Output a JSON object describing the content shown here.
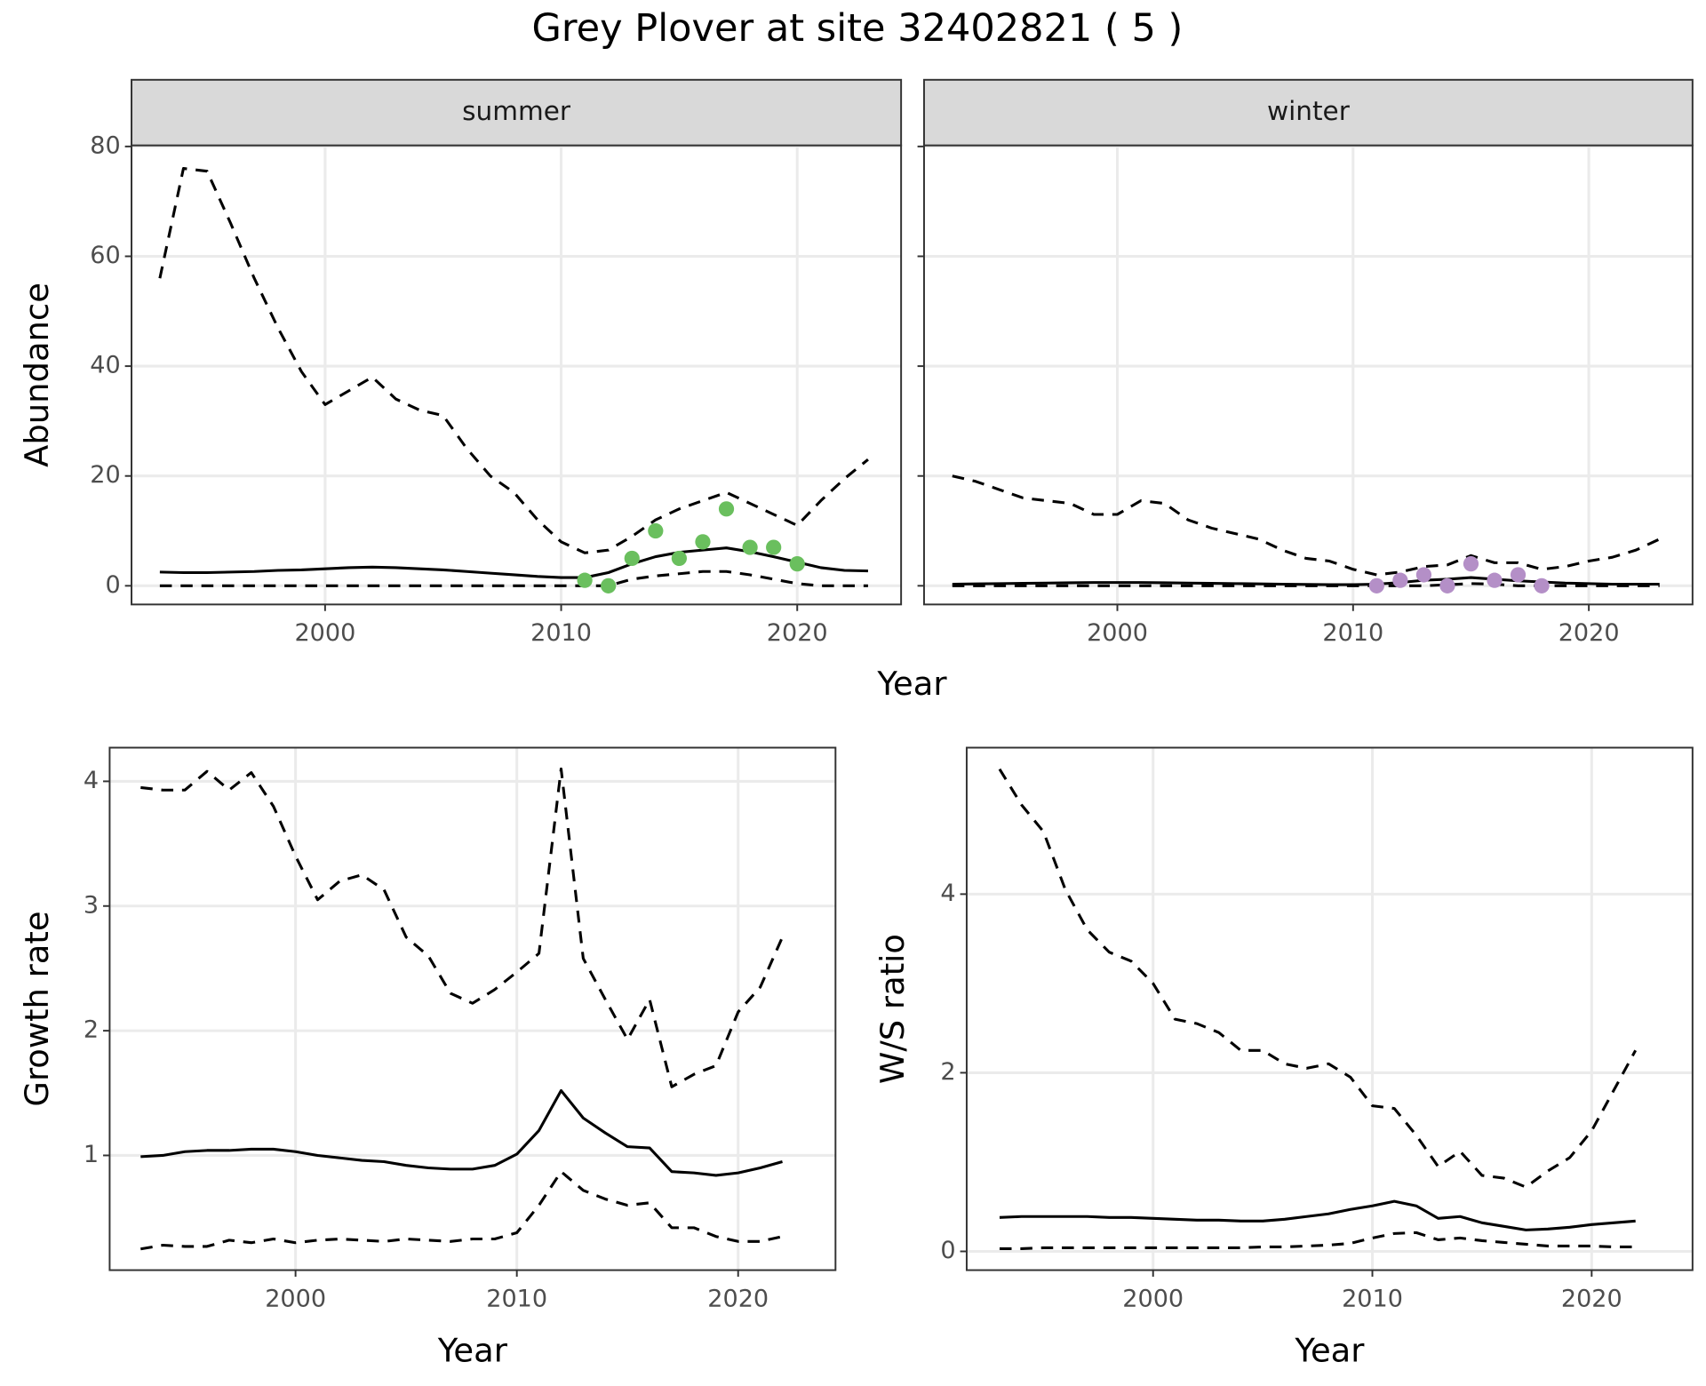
{
  "title": "Grey Plover at site 32402821 ( 5 )",
  "chart_data": [
    {
      "type": "line",
      "xlabel": "Year",
      "ylabel": "Abundance",
      "x": [
        1993,
        1994,
        1995,
        1996,
        1997,
        1998,
        1999,
        2000,
        2001,
        2002,
        2003,
        2004,
        2005,
        2006,
        2007,
        2008,
        2009,
        2010,
        2011,
        2012,
        2013,
        2014,
        2015,
        2016,
        2017,
        2018,
        2019,
        2020,
        2021,
        2022,
        2023
      ],
      "xlim": [
        1991.8,
        2024.4
      ],
      "xticks": [
        2000,
        2010,
        2020
      ],
      "ylim": [
        -3.4,
        80.2
      ],
      "yticks": [
        0,
        20,
        40,
        60,
        80
      ],
      "grid": true,
      "facets": [
        {
          "title": "summer",
          "series": [
            {
              "color": "#000000",
              "dash": false,
              "values": [
                2.5,
                2.4,
                2.4,
                2.5,
                2.6,
                2.8,
                2.9,
                3.1,
                3.3,
                3.4,
                3.3,
                3.1,
                2.9,
                2.6,
                2.3,
                2.0,
                1.7,
                1.5,
                1.5,
                2.4,
                4.0,
                5.3,
                6.1,
                6.5,
                6.9,
                6.2,
                5.3,
                4.3,
                3.3,
                2.8,
                2.7
              ]
            },
            {
              "color": "#000000",
              "dash": true,
              "values": [
                0,
                0,
                0,
                0,
                0,
                0,
                0,
                0,
                0,
                0,
                0,
                0,
                0,
                0,
                0,
                0,
                0,
                0,
                0,
                0,
                1.2,
                1.8,
                2.2,
                2.6,
                2.6,
                2.0,
                1.2,
                0.4,
                0,
                0,
                0
              ]
            },
            {
              "color": "#000000",
              "dash": true,
              "values": [
                56,
                76,
                75.5,
                66,
                56,
                47,
                39,
                33,
                35.5,
                38,
                34,
                32,
                31,
                25,
                20,
                17,
                12,
                8,
                6,
                6.5,
                9,
                12,
                14,
                15.5,
                17,
                15,
                13,
                11,
                15.5,
                19.5,
                23
              ]
            }
          ],
          "points": {
            "color": "#6abf5e",
            "x": [
              2011,
              2012,
              2013,
              2014,
              2015,
              2016,
              2017,
              2018,
              2019,
              2020
            ],
            "values": [
              1,
              0,
              5,
              10,
              5,
              8,
              14,
              7,
              7,
              4
            ]
          }
        },
        {
          "title": "winter",
          "series": [
            {
              "color": "#000000",
              "dash": false,
              "values": [
                0.3,
                0.35,
                0.4,
                0.45,
                0.5,
                0.55,
                0.6,
                0.6,
                0.6,
                0.55,
                0.5,
                0.45,
                0.4,
                0.35,
                0.3,
                0.25,
                0.2,
                0.2,
                0.3,
                0.6,
                1.0,
                1.2,
                1.5,
                1.2,
                0.9,
                0.7,
                0.5,
                0.4,
                0.3,
                0.3,
                0.3
              ]
            },
            {
              "color": "#000000",
              "dash": true,
              "values": [
                0,
                0,
                0,
                0,
                0,
                0,
                0,
                0,
                0,
                0,
                0,
                0,
                0,
                0,
                0,
                0,
                0,
                0,
                0,
                0,
                0,
                0.2,
                0.4,
                0.3,
                0,
                0,
                0,
                0,
                0,
                0,
                0
              ]
            },
            {
              "color": "#000000",
              "dash": true,
              "values": [
                20,
                19,
                17.5,
                16,
                15.5,
                15,
                13,
                13,
                15.5,
                15,
                12,
                10.5,
                9.5,
                8.5,
                6.5,
                5,
                4.5,
                3,
                2,
                2.5,
                3.5,
                3.8,
                5.5,
                4.2,
                4.2,
                3,
                3.5,
                4.5,
                5.2,
                6.5,
                8.5
              ]
            }
          ],
          "points": {
            "color": "#b48fc7",
            "x": [
              2011,
              2012,
              2013,
              2014,
              2015,
              2016,
              2017,
              2018
            ],
            "values": [
              0,
              1,
              2,
              0,
              4,
              1,
              2,
              0
            ]
          }
        }
      ]
    },
    {
      "type": "line",
      "xlabel": "Year",
      "ylabel": "Growth rate",
      "x": [
        1993,
        1994,
        1995,
        1996,
        1997,
        1998,
        1999,
        2000,
        2001,
        2002,
        2003,
        2004,
        2005,
        2006,
        2007,
        2008,
        2009,
        2010,
        2011,
        2012,
        2013,
        2014,
        2015,
        2016,
        2017,
        2018,
        2019,
        2020,
        2021,
        2022
      ],
      "xlim": [
        1991.6,
        2024.4
      ],
      "xticks": [
        2000,
        2010,
        2020
      ],
      "ylim": [
        0.08,
        4.27
      ],
      "yticks": [
        1,
        2,
        3,
        4
      ],
      "grid": true,
      "series": [
        {
          "color": "#000000",
          "dash": false,
          "values": [
            0.99,
            1.0,
            1.03,
            1.04,
            1.04,
            1.05,
            1.05,
            1.03,
            1.0,
            0.98,
            0.96,
            0.95,
            0.92,
            0.9,
            0.89,
            0.89,
            0.92,
            1.01,
            1.2,
            1.52,
            1.3,
            1.18,
            1.07,
            1.06,
            0.87,
            0.86,
            0.84,
            0.86,
            0.9,
            0.95
          ]
        },
        {
          "color": "#000000",
          "dash": true,
          "values": [
            0.25,
            0.28,
            0.27,
            0.27,
            0.32,
            0.3,
            0.33,
            0.3,
            0.32,
            0.33,
            0.32,
            0.31,
            0.33,
            0.32,
            0.31,
            0.33,
            0.33,
            0.38,
            0.6,
            0.87,
            0.72,
            0.65,
            0.6,
            0.62,
            0.42,
            0.42,
            0.35,
            0.31,
            0.31,
            0.35
          ]
        },
        {
          "color": "#000000",
          "dash": true,
          "values": [
            3.95,
            3.93,
            3.93,
            4.08,
            3.93,
            4.07,
            3.8,
            3.4,
            3.05,
            3.2,
            3.25,
            3.13,
            2.75,
            2.6,
            2.3,
            2.22,
            2.33,
            2.47,
            2.62,
            4.1,
            2.58,
            2.25,
            1.93,
            2.25,
            1.55,
            1.65,
            1.72,
            2.15,
            2.35,
            2.75
          ]
        }
      ]
    },
    {
      "type": "line",
      "xlabel": "Year",
      "ylabel": "W/S ratio",
      "x": [
        1993,
        1994,
        1995,
        1996,
        1997,
        1998,
        1999,
        2000,
        2001,
        2002,
        2003,
        2004,
        2005,
        2006,
        2007,
        2008,
        2009,
        2010,
        2011,
        2012,
        2013,
        2014,
        2015,
        2016,
        2017,
        2018,
        2019,
        2020,
        2021,
        2022
      ],
      "xlim": [
        1991.5,
        2024.6
      ],
      "xticks": [
        2000,
        2010,
        2020
      ],
      "ylim": [
        -0.21,
        5.64
      ],
      "yticks": [
        0,
        2,
        4
      ],
      "grid": true,
      "series": [
        {
          "color": "#000000",
          "dash": false,
          "values": [
            0.38,
            0.39,
            0.39,
            0.39,
            0.39,
            0.38,
            0.38,
            0.37,
            0.36,
            0.35,
            0.35,
            0.34,
            0.34,
            0.36,
            0.39,
            0.42,
            0.47,
            0.51,
            0.56,
            0.51,
            0.37,
            0.39,
            0.32,
            0.28,
            0.24,
            0.25,
            0.27,
            0.3,
            0.32,
            0.34
          ]
        },
        {
          "color": "#000000",
          "dash": true,
          "values": [
            0.03,
            0.03,
            0.04,
            0.04,
            0.04,
            0.04,
            0.04,
            0.04,
            0.04,
            0.04,
            0.04,
            0.04,
            0.05,
            0.05,
            0.06,
            0.07,
            0.09,
            0.15,
            0.2,
            0.21,
            0.13,
            0.15,
            0.12,
            0.1,
            0.08,
            0.06,
            0.06,
            0.06,
            0.05,
            0.05
          ]
        },
        {
          "color": "#000000",
          "dash": true,
          "values": [
            5.4,
            5.0,
            4.7,
            4.05,
            3.6,
            3.35,
            3.25,
            3.0,
            2.6,
            2.55,
            2.45,
            2.25,
            2.25,
            2.1,
            2.05,
            2.1,
            1.95,
            1.63,
            1.6,
            1.3,
            0.95,
            1.12,
            0.85,
            0.82,
            0.72,
            0.9,
            1.05,
            1.35,
            1.8,
            2.25
          ]
        }
      ]
    }
  ]
}
